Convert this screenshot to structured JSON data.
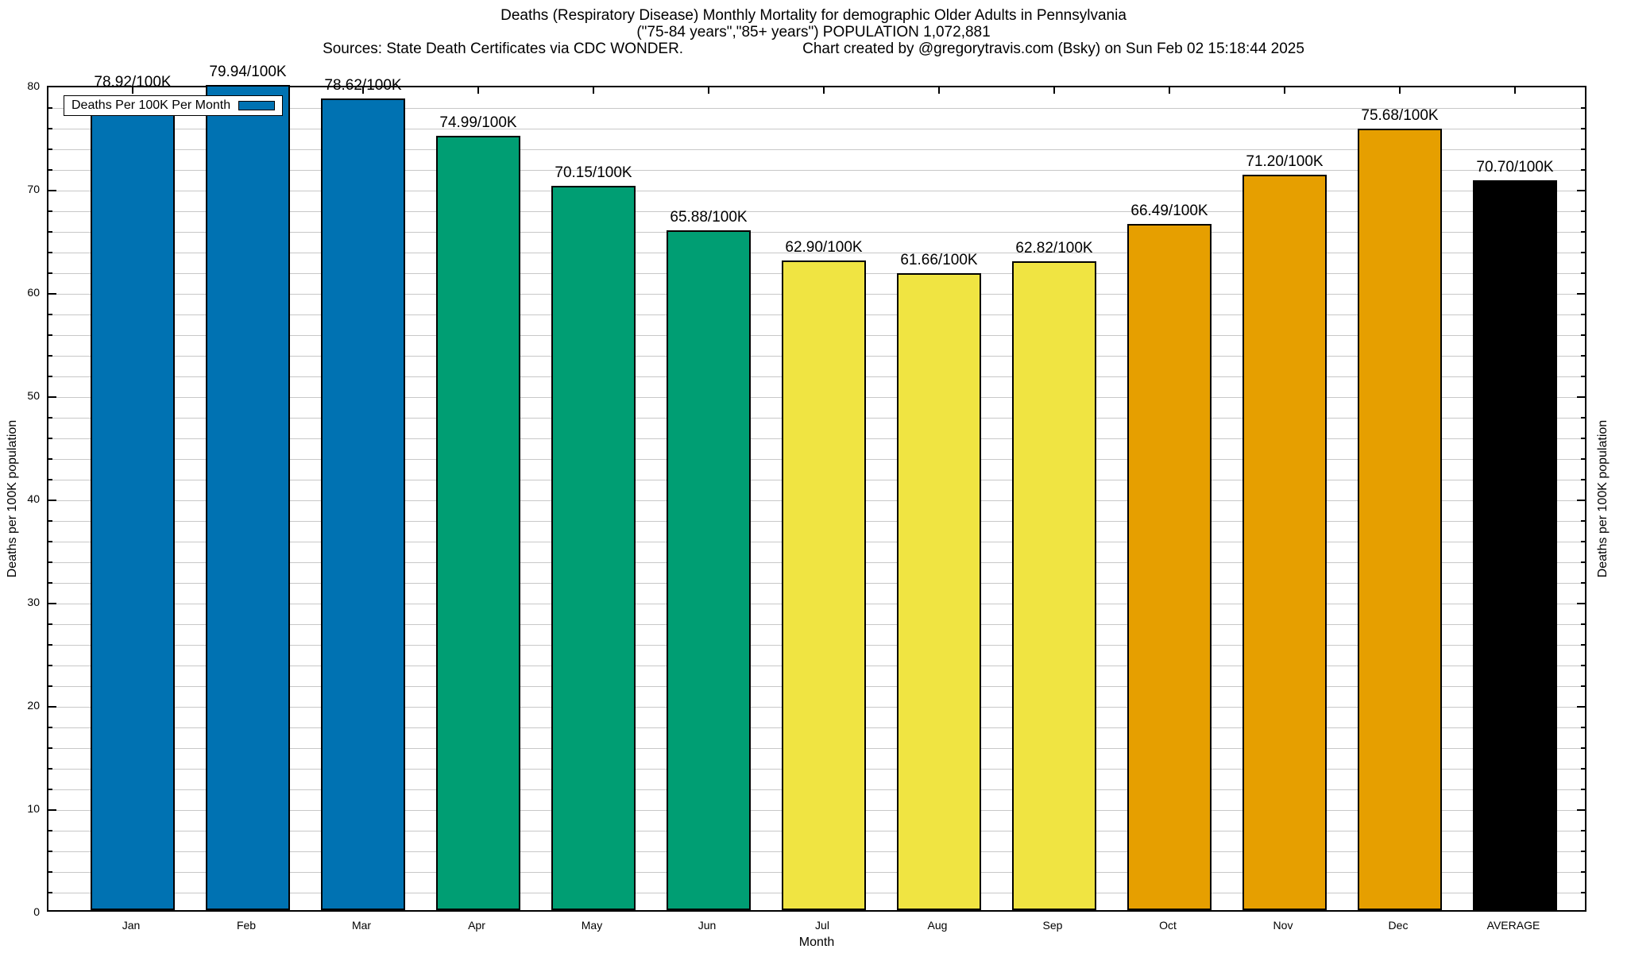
{
  "header": {
    "title_line1": "Deaths (Respiratory Disease) Monthly Mortality for demographic Older Adults in Pennsylvania",
    "title_line2": "(\"75-84 years\",\"85+ years\") POPULATION 1,072,881",
    "sources": "Sources: State Death Certificates via CDC WONDER.",
    "credit": "Chart created by @gregorytravis.com (Bsky) on Sun Feb 02 15:18:44 2025"
  },
  "chart_data": {
    "type": "bar",
    "title": "Deaths (Respiratory Disease) Monthly Mortality for demographic Older Adults in Pennsylvania",
    "subtitle": "(\"75-84 years\",\"85+ years\") POPULATION 1,072,881",
    "categories": [
      "Jan",
      "Feb",
      "Mar",
      "Apr",
      "May",
      "Jun",
      "Jul",
      "Aug",
      "Sep",
      "Oct",
      "Nov",
      "Dec",
      "AVERAGE"
    ],
    "values": [
      78.92,
      79.94,
      78.62,
      74.99,
      70.15,
      65.88,
      62.9,
      61.66,
      62.82,
      66.49,
      71.2,
      75.68,
      70.7
    ],
    "value_labels": [
      "78.92/100K",
      "79.94/100K",
      "78.62/100K",
      "74.99/100K",
      "70.15/100K",
      "65.88/100K",
      "62.90/100K",
      "61.66/100K",
      "62.82/100K",
      "66.49/100K",
      "71.20/100K",
      "75.68/100K",
      "70.70/100K"
    ],
    "bar_colors": [
      "#0072B2",
      "#0072B2",
      "#0072B2",
      "#009E73",
      "#009E73",
      "#009E73",
      "#F0E442",
      "#F0E442",
      "#F0E442",
      "#E69F00",
      "#E69F00",
      "#E69F00",
      "#000000"
    ],
    "xlabel": "Month",
    "ylabel_left": "Deaths per 100K population",
    "ylabel_right": "Deaths per 100K population",
    "ylim": [
      0,
      80
    ],
    "y_major_tick_step": 10,
    "y_minor_tick_step": 2,
    "y_major_tick_labels": [
      "0",
      "10",
      "20",
      "30",
      "40",
      "50",
      "60",
      "70",
      "80"
    ],
    "grid": "horizontal gridlines every 2 units",
    "legend": {
      "label": "Deaths Per 100K Per Month",
      "swatch_color": "#0072B2",
      "position": "top-left",
      "box": true
    },
    "colors": {
      "grid": "#c8c8c8",
      "axis": "#000000",
      "background": "#ffffff"
    }
  }
}
